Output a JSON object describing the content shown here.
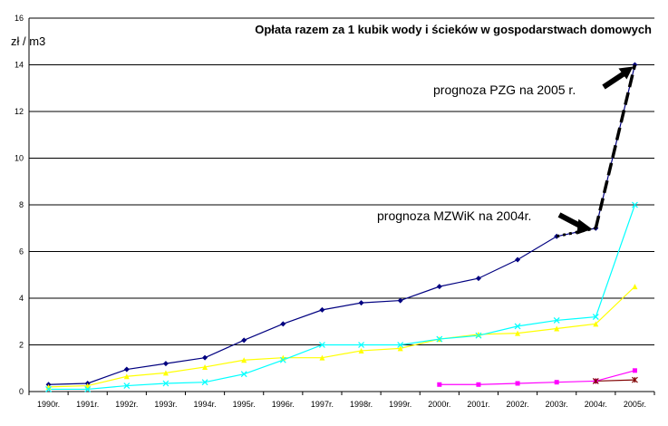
{
  "chart_data": {
    "type": "line",
    "title": "Opłata razem za 1 kubik wody i ścieków w gospodarstwach domowych",
    "ylabel": "zł / m3",
    "xlabel": "",
    "ylim": [
      0,
      16
    ],
    "yticks": [
      0,
      2,
      4,
      6,
      8,
      10,
      12,
      14,
      16
    ],
    "grid": true,
    "categories": [
      "1990r.",
      "1991r.",
      "1992r.",
      "1993r.",
      "1994r.",
      "1995r.",
      "1996r.",
      "1997r.",
      "1998r.",
      "1999r.",
      "2000r.",
      "2001r.",
      "2002r.",
      "2003r.",
      "2004r.",
      "2005r."
    ],
    "series": [
      {
        "color": "#000080",
        "marker": "diamond",
        "values": [
          0.3,
          0.35,
          0.95,
          1.2,
          1.45,
          2.2,
          2.9,
          3.5,
          3.8,
          3.9,
          4.5,
          4.85,
          5.65,
          6.65,
          7.0,
          14.0
        ]
      },
      {
        "color": "#ffff00",
        "marker": "triangle",
        "values": [
          0.2,
          0.25,
          0.65,
          0.8,
          1.05,
          1.35,
          1.45,
          1.45,
          1.75,
          1.85,
          2.25,
          2.45,
          2.5,
          2.7,
          2.9,
          4.5
        ]
      },
      {
        "color": "#00ffff",
        "marker": "x",
        "values": [
          0.1,
          0.1,
          0.25,
          0.35,
          0.4,
          0.75,
          1.35,
          2.0,
          2.0,
          2.0,
          2.25,
          2.4,
          2.8,
          3.05,
          3.2,
          8.0
        ]
      },
      {
        "color": "#ff00ff",
        "marker": "square",
        "values": [
          null,
          null,
          null,
          null,
          null,
          null,
          null,
          null,
          null,
          null,
          0.3,
          0.3,
          0.35,
          0.4,
          0.45,
          0.9
        ]
      },
      {
        "color": "#800000",
        "marker": "star",
        "values": [
          null,
          null,
          null,
          null,
          null,
          null,
          null,
          null,
          null,
          null,
          null,
          null,
          null,
          null,
          0.45,
          0.5
        ]
      }
    ],
    "annotations": [
      {
        "text": "prognoza PZG na 2005 r.",
        "arrow_to_category": "2005r.",
        "arrow_to_value": 14.0
      },
      {
        "text": "prognoza MZWiK na 2004r.",
        "arrow_to_category": "2004r.",
        "arrow_to_value": 7.0
      }
    ]
  }
}
